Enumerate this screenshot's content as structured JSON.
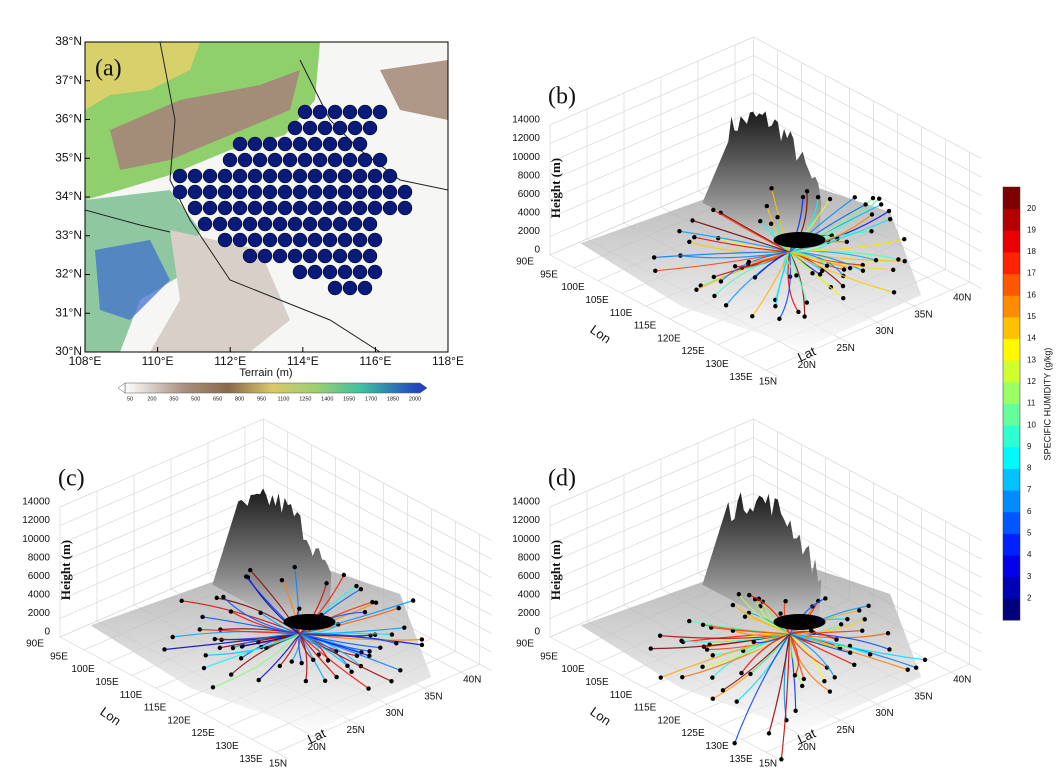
{
  "panel_a": {
    "label": "(a)",
    "lat_ticks": [
      "38°N",
      "37°N",
      "36°N",
      "35°N",
      "34°N",
      "33°N",
      "32°N",
      "31°N",
      "30°N"
    ],
    "lon_ticks": [
      "108°E",
      "110°E",
      "112°E",
      "114°E",
      "116°E",
      "118°E"
    ],
    "colorbar": {
      "title": "Terrain (m)",
      "ticks": [
        50,
        200,
        350,
        500,
        650,
        800,
        950,
        1100,
        1250,
        1400,
        1550,
        1700,
        1850,
        2000
      ]
    }
  },
  "panels_3d": [
    {
      "label": "(b)",
      "height_title": "Height (m)",
      "height_ticks": [
        0,
        2000,
        4000,
        6000,
        8000,
        10000,
        12000,
        14000
      ],
      "lon_title": "Lon",
      "lon_ticks": [
        "90E",
        "95E",
        "100E",
        "105E",
        "110E",
        "115E",
        "120E",
        "125E",
        "130E",
        "135E"
      ],
      "lat_title": "Lat",
      "lat_ticks": [
        "15N",
        "20N",
        "25N",
        "30N",
        "35N",
        "40N"
      ]
    },
    {
      "label": "(c)",
      "height_title": "Height (m)",
      "height_ticks": [
        0,
        2000,
        4000,
        6000,
        8000,
        10000,
        12000,
        14000
      ],
      "lon_title": "Lon",
      "lon_ticks": [
        "90E",
        "95E",
        "100E",
        "105E",
        "110E",
        "115E",
        "120E",
        "125E",
        "130E",
        "135E"
      ],
      "lat_title": "Lat",
      "lat_ticks": [
        "15N",
        "20N",
        "25N",
        "30N",
        "35N",
        "40N"
      ]
    },
    {
      "label": "(d)",
      "height_title": "Height (m)",
      "height_ticks": [
        0,
        2000,
        4000,
        6000,
        8000,
        10000,
        12000,
        14000
      ],
      "lon_title": "Lon",
      "lon_ticks": [
        "90E",
        "95E",
        "100E",
        "105E",
        "110E",
        "115E",
        "120E",
        "125E",
        "130E",
        "135E"
      ],
      "lat_title": "Lat",
      "lat_ticks": [
        "15N",
        "20N",
        "25N",
        "30N",
        "35N",
        "40N"
      ]
    }
  ],
  "humidity_colorbar": {
    "title": "SPECIFIC HUMIDITY (g/kg)",
    "ticks": [
      2,
      3,
      4,
      5,
      6,
      7,
      8,
      9,
      10,
      11,
      12,
      13,
      14,
      15,
      16,
      17,
      18,
      19,
      20
    ]
  }
}
